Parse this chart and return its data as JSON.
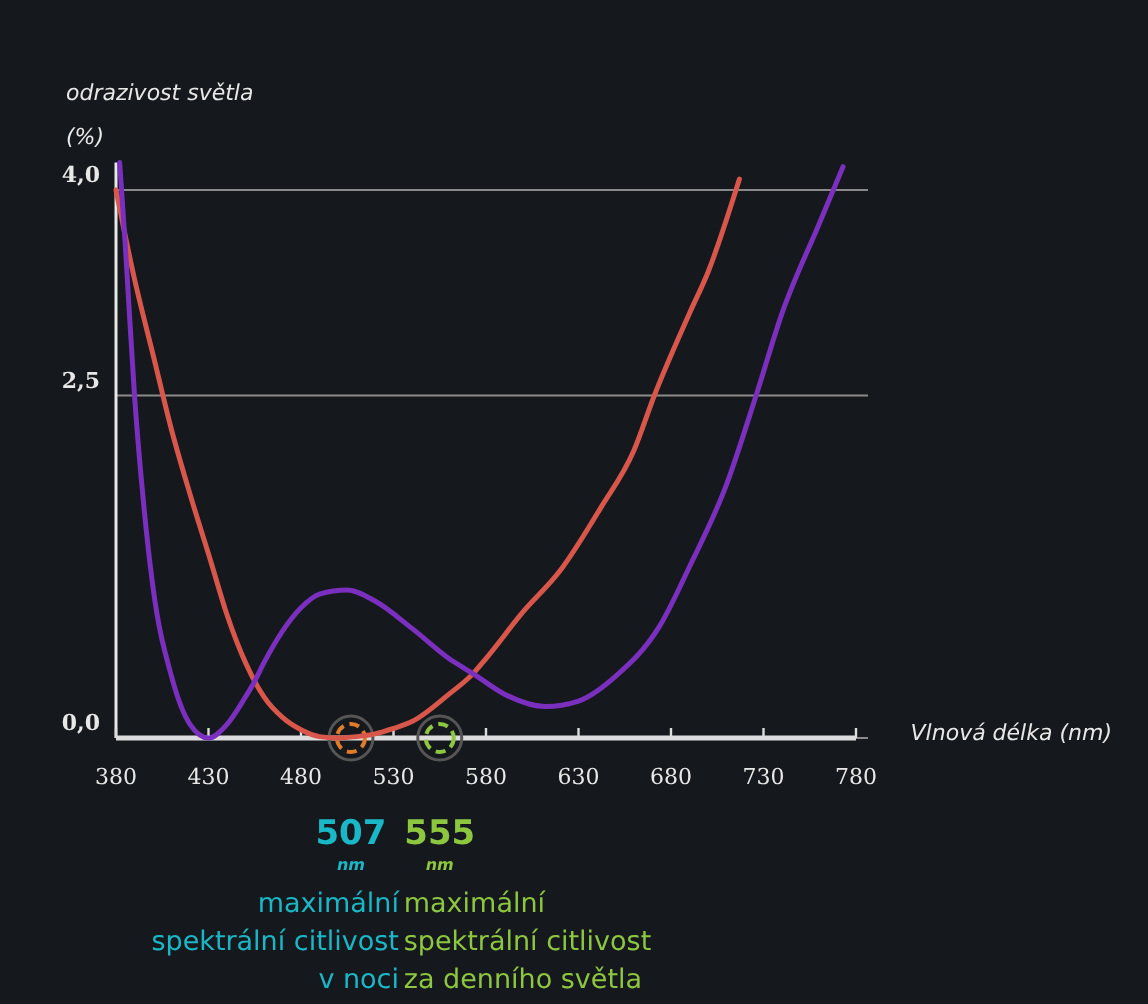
{
  "chart_data": {
    "type": "line",
    "xlabel": "Vlnová délka (nm)",
    "ylabel": "odrazivost světla (%)",
    "xlim": [
      380,
      780
    ],
    "xticks": [
      380,
      430,
      480,
      530,
      580,
      630,
      680,
      730,
      780
    ],
    "ylim": [
      0,
      4.2
    ],
    "yticks": [
      {
        "value": 0,
        "label": "0,0"
      },
      {
        "value": 2.5,
        "label": "2,5"
      },
      {
        "value": 4,
        "label": "4,0"
      }
    ],
    "grid": "y",
    "marker": "none",
    "line_style": "solid",
    "series": [
      {
        "color": "#d9574a",
        "x": [
          380,
          390,
          400,
          410,
          420,
          431,
          440,
          450,
          460,
          470,
          480,
          490,
          500,
          510,
          520,
          530,
          540,
          560,
          573,
          580,
          600,
          620,
          642,
          660,
          671,
          690,
          700,
          717
        ],
        "values": [
          4.0,
          3.35,
          2.8,
          2.25,
          1.78,
          1.3,
          0.9,
          0.55,
          0.3,
          0.15,
          0.06,
          0.01,
          0,
          0.01,
          0.03,
          0.07,
          0.12,
          0.32,
          0.47,
          0.58,
          0.92,
          1.22,
          1.68,
          2.1,
          2.5,
          3.1,
          3.4,
          4.08
        ]
      },
      {
        "color": "#7b2fbf",
        "x": [
          382,
          385,
          390,
          395,
          400,
          410,
          420,
          430,
          440,
          450,
          454,
          460,
          470,
          480,
          490,
          505,
          520,
          540,
          560,
          573,
          590,
          612,
          630,
          650,
          674,
          690,
          710,
          726,
          740,
          760,
          773
        ],
        "values": [
          4.2,
          3.6,
          2.5,
          1.7,
          1.1,
          0.45,
          0.1,
          0,
          0.1,
          0.3,
          0.39,
          0.55,
          0.78,
          0.95,
          1.05,
          1.08,
          1.0,
          0.8,
          0.58,
          0.47,
          0.32,
          0.23,
          0.27,
          0.45,
          0.82,
          1.25,
          1.85,
          2.5,
          3.1,
          3.75,
          4.17
        ]
      }
    ],
    "annotations": [
      {
        "text": "507",
        "x": 507,
        "y": 0
      },
      "nm",
      "maximální",
      "spektrální citlivost",
      "v noci",
      {
        "text": "555",
        "x": 555,
        "y": 0
      },
      "nm",
      "maximální",
      "spektrální citlivost",
      "za denního světla"
    ]
  }
}
